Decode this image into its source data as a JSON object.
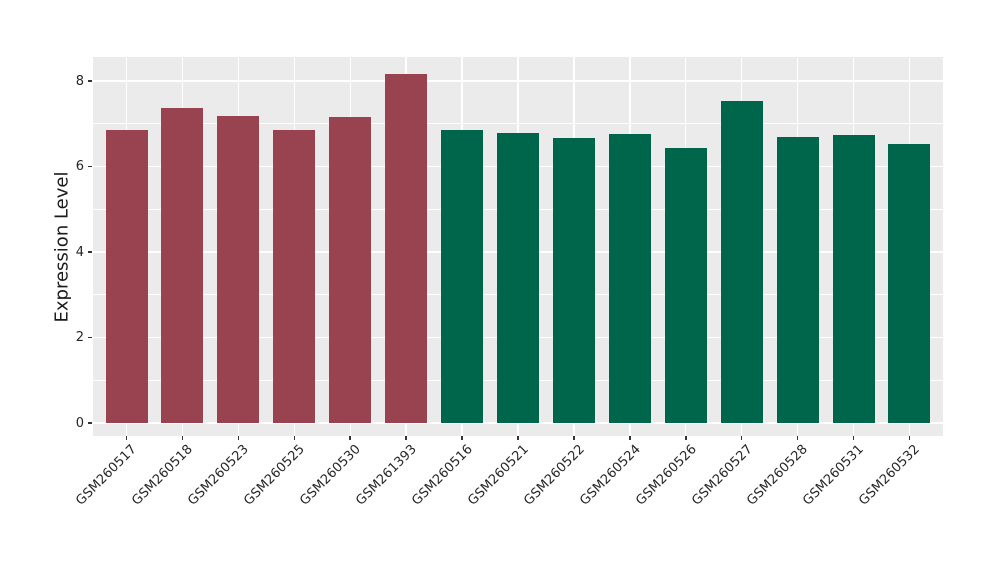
{
  "chart_data": {
    "type": "bar",
    "title": "",
    "ylabel": "Expression Level",
    "xlabel": "",
    "ylim": [
      0,
      8.56
    ],
    "yticks": [
      0,
      2,
      4,
      6,
      8
    ],
    "yminor_ticks": [
      1,
      3,
      5,
      7
    ],
    "grid": "on",
    "legend": "none",
    "panel_bg": "#EBEBEB",
    "grid_color": "#FFFFFF",
    "axis_text_color": "#262626",
    "bar_color_group1": "#994351",
    "bar_color_group2": "#00664B",
    "bars": [
      {
        "label": "GSM260517",
        "value": 6.85,
        "color": "#994351"
      },
      {
        "label": "GSM260518",
        "value": 7.37,
        "color": "#994351"
      },
      {
        "label": "GSM260523",
        "value": 7.17,
        "color": "#994351"
      },
      {
        "label": "GSM260525",
        "value": 6.85,
        "color": "#994351"
      },
      {
        "label": "GSM260530",
        "value": 7.16,
        "color": "#994351"
      },
      {
        "label": "GSM261393",
        "value": 8.17,
        "color": "#994351"
      },
      {
        "label": "GSM260516",
        "value": 6.85,
        "color": "#00664B"
      },
      {
        "label": "GSM260521",
        "value": 6.78,
        "color": "#00664B"
      },
      {
        "label": "GSM260522",
        "value": 6.67,
        "color": "#00664B"
      },
      {
        "label": "GSM260524",
        "value": 6.75,
        "color": "#00664B"
      },
      {
        "label": "GSM260526",
        "value": 6.43,
        "color": "#00664B"
      },
      {
        "label": "GSM260527",
        "value": 7.53,
        "color": "#00664B"
      },
      {
        "label": "GSM260528",
        "value": 6.7,
        "color": "#00664B"
      },
      {
        "label": "GSM260531",
        "value": 6.74,
        "color": "#00664B"
      },
      {
        "label": "GSM260532",
        "value": 6.52,
        "color": "#00664B"
      }
    ]
  }
}
